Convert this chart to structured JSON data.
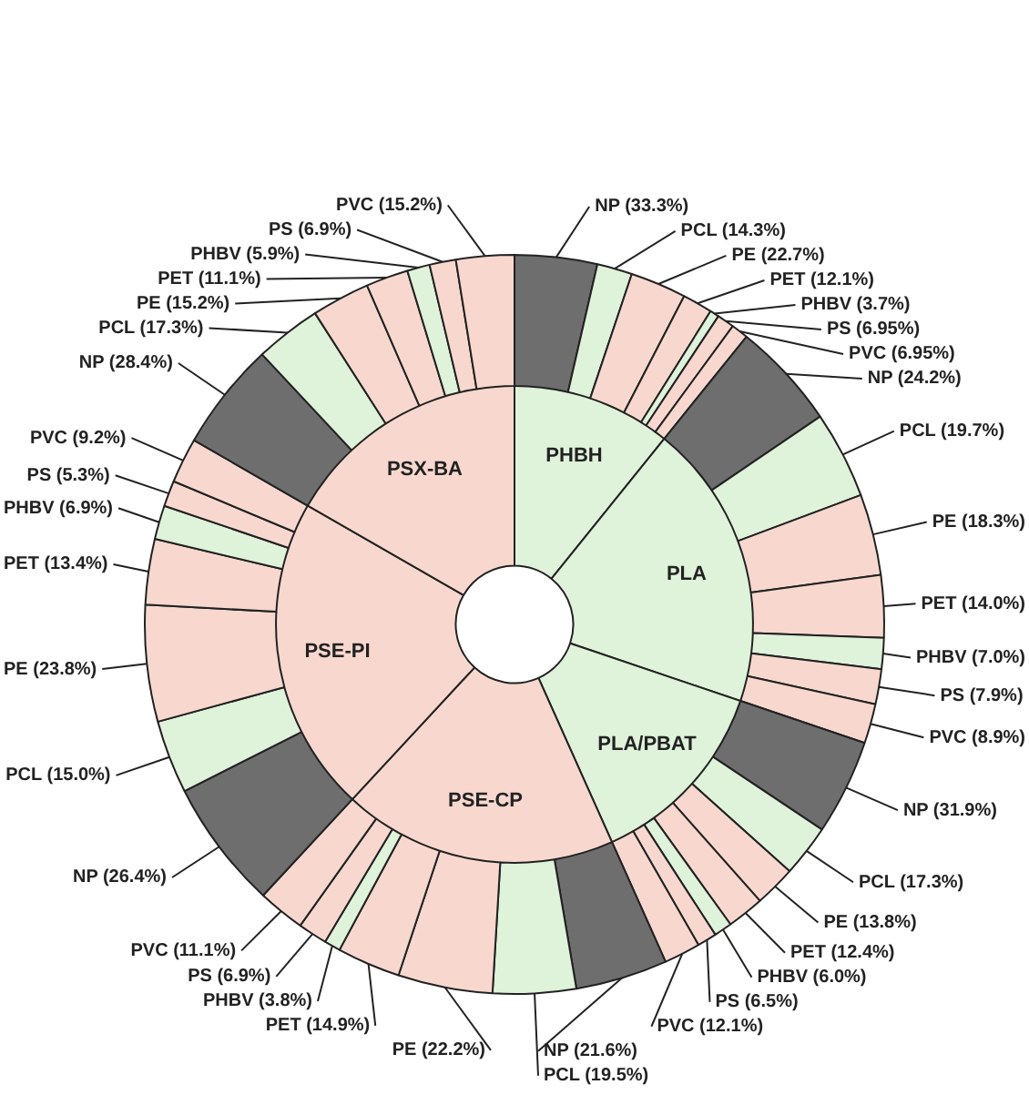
{
  "chart_data": [
    {
      "type": "donut",
      "categories": [
        "PHBH",
        "PLA",
        "PLA/PBAT",
        "PSE-CP",
        "PSE-PI",
        "PSX-BA"
      ],
      "values": [
        10.8,
        19.4,
        13.1,
        18.6,
        21.4,
        16.7
      ],
      "colors": [
        "#dff2da",
        "#dff2da",
        "#dff2da",
        "#f8d8ce",
        "#f8d8ce",
        "#f8d8ce"
      ]
    },
    {
      "type": "donut",
      "categories": [
        "NP (33.3%)",
        "PCL (14.3%)",
        "PE (22.7%)",
        "PET (12.1%)",
        "PHBV (3.7%)",
        "PS (6.95%)",
        "PVC (6.95%)",
        "NP (24.2%)",
        "PCL (19.7%)",
        "PE (18.3%)",
        "PET (14.0%)",
        "PHBV (7.0%)",
        "PS (7.9%)",
        "PVC (8.9%)",
        "NP (31.9%)",
        "PCL (17.3%)",
        "PE (13.8%)",
        "PET (12.4%)",
        "PHBV (6.0%)",
        "PS (6.5%)",
        "PVC (12.1%)",
        "NP (21.6%)",
        "PCL (19.5%)",
        "PE (22.2%)",
        "PET (14.9%)",
        "PHBV (3.8%)",
        "PS (6.9%)",
        "PVC (11.1%)",
        "NP (26.4%)",
        "PCL (15.0%)",
        "PE (23.8%)",
        "PET (13.4%)",
        "PHBV (6.9%)",
        "PS (5.3%)",
        "PVC (9.2%)",
        "NP (28.4%)",
        "PCL (17.3%)",
        "PE (15.2%)",
        "PET (11.1%)",
        "PHBV (5.9%)",
        "PS (6.9%)",
        "PVC (15.2%)"
      ],
      "values": [
        3.6,
        1.54,
        2.45,
        1.31,
        0.4,
        0.75,
        0.75,
        4.69,
        3.82,
        3.55,
        2.72,
        1.36,
        1.53,
        1.73,
        4.17,
        2.27,
        1.81,
        1.62,
        0.79,
        0.85,
        1.59,
        4.02,
        3.63,
        4.13,
        2.77,
        0.71,
        1.28,
        2.06,
        5.65,
        3.21,
        5.09,
        2.87,
        1.48,
        1.13,
        1.97,
        4.74,
        2.89,
        2.54,
        1.85,
        0.99,
        1.15,
        2.54
      ],
      "colors": [
        "#6e6e6e",
        "#dff2da",
        "#f8d8ce",
        "#f8d8ce",
        "#dff2da",
        "#f8d8ce",
        "#f8d8ce",
        "#6e6e6e",
        "#dff2da",
        "#f8d8ce",
        "#f8d8ce",
        "#dff2da",
        "#f8d8ce",
        "#f8d8ce",
        "#6e6e6e",
        "#dff2da",
        "#f8d8ce",
        "#f8d8ce",
        "#dff2da",
        "#f8d8ce",
        "#f8d8ce",
        "#6e6e6e",
        "#dff2da",
        "#f8d8ce",
        "#f8d8ce",
        "#dff2da",
        "#f8d8ce",
        "#f8d8ce",
        "#6e6e6e",
        "#dff2da",
        "#f8d8ce",
        "#f8d8ce",
        "#dff2da",
        "#f8d8ce",
        "#f8d8ce",
        "#6e6e6e",
        "#dff2da",
        "#f8d8ce",
        "#f8d8ce",
        "#dff2da",
        "#f8d8ce",
        "#f8d8ce"
      ]
    }
  ]
}
